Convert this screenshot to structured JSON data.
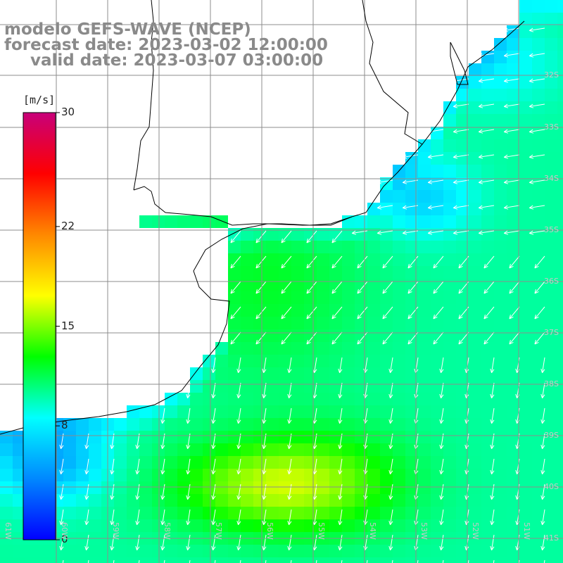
{
  "title": {
    "line1": "modelo GEFS-WAVE (NCEP)",
    "line2": "forecast date: 2023-03-02 12:00:00",
    "line3": "valid date: 2023-03-07 03:00:00"
  },
  "colorbar": {
    "unit": "[m/s]",
    "min": 0,
    "max": 30,
    "ticks": [
      {
        "label": "30",
        "value": 30
      },
      {
        "label": "22",
        "value": 22
      },
      {
        "label": "15",
        "value": 15
      },
      {
        "label": "8",
        "value": 8
      },
      {
        "label": "0",
        "value": 0
      }
    ],
    "stops": [
      "#0000ff",
      "#0088ff",
      "#00ffff",
      "#00ff00",
      "#ffff00",
      "#ff8800",
      "#ff0000",
      "#c8007a"
    ]
  },
  "lat_labels": [
    "32S",
    "33S",
    "34S",
    "35S",
    "36S",
    "37S",
    "38S",
    "39S",
    "40S",
    "41S"
  ],
  "lon_labels": [
    "61W",
    "60W",
    "59W",
    "58W",
    "57W",
    "56W",
    "55W",
    "54W",
    "53W",
    "52W",
    "51W"
  ],
  "colors": {
    "land": "#ffffff",
    "coast": "#000000",
    "grid": "#8c8c8c",
    "arrow": "#ffffff"
  }
}
